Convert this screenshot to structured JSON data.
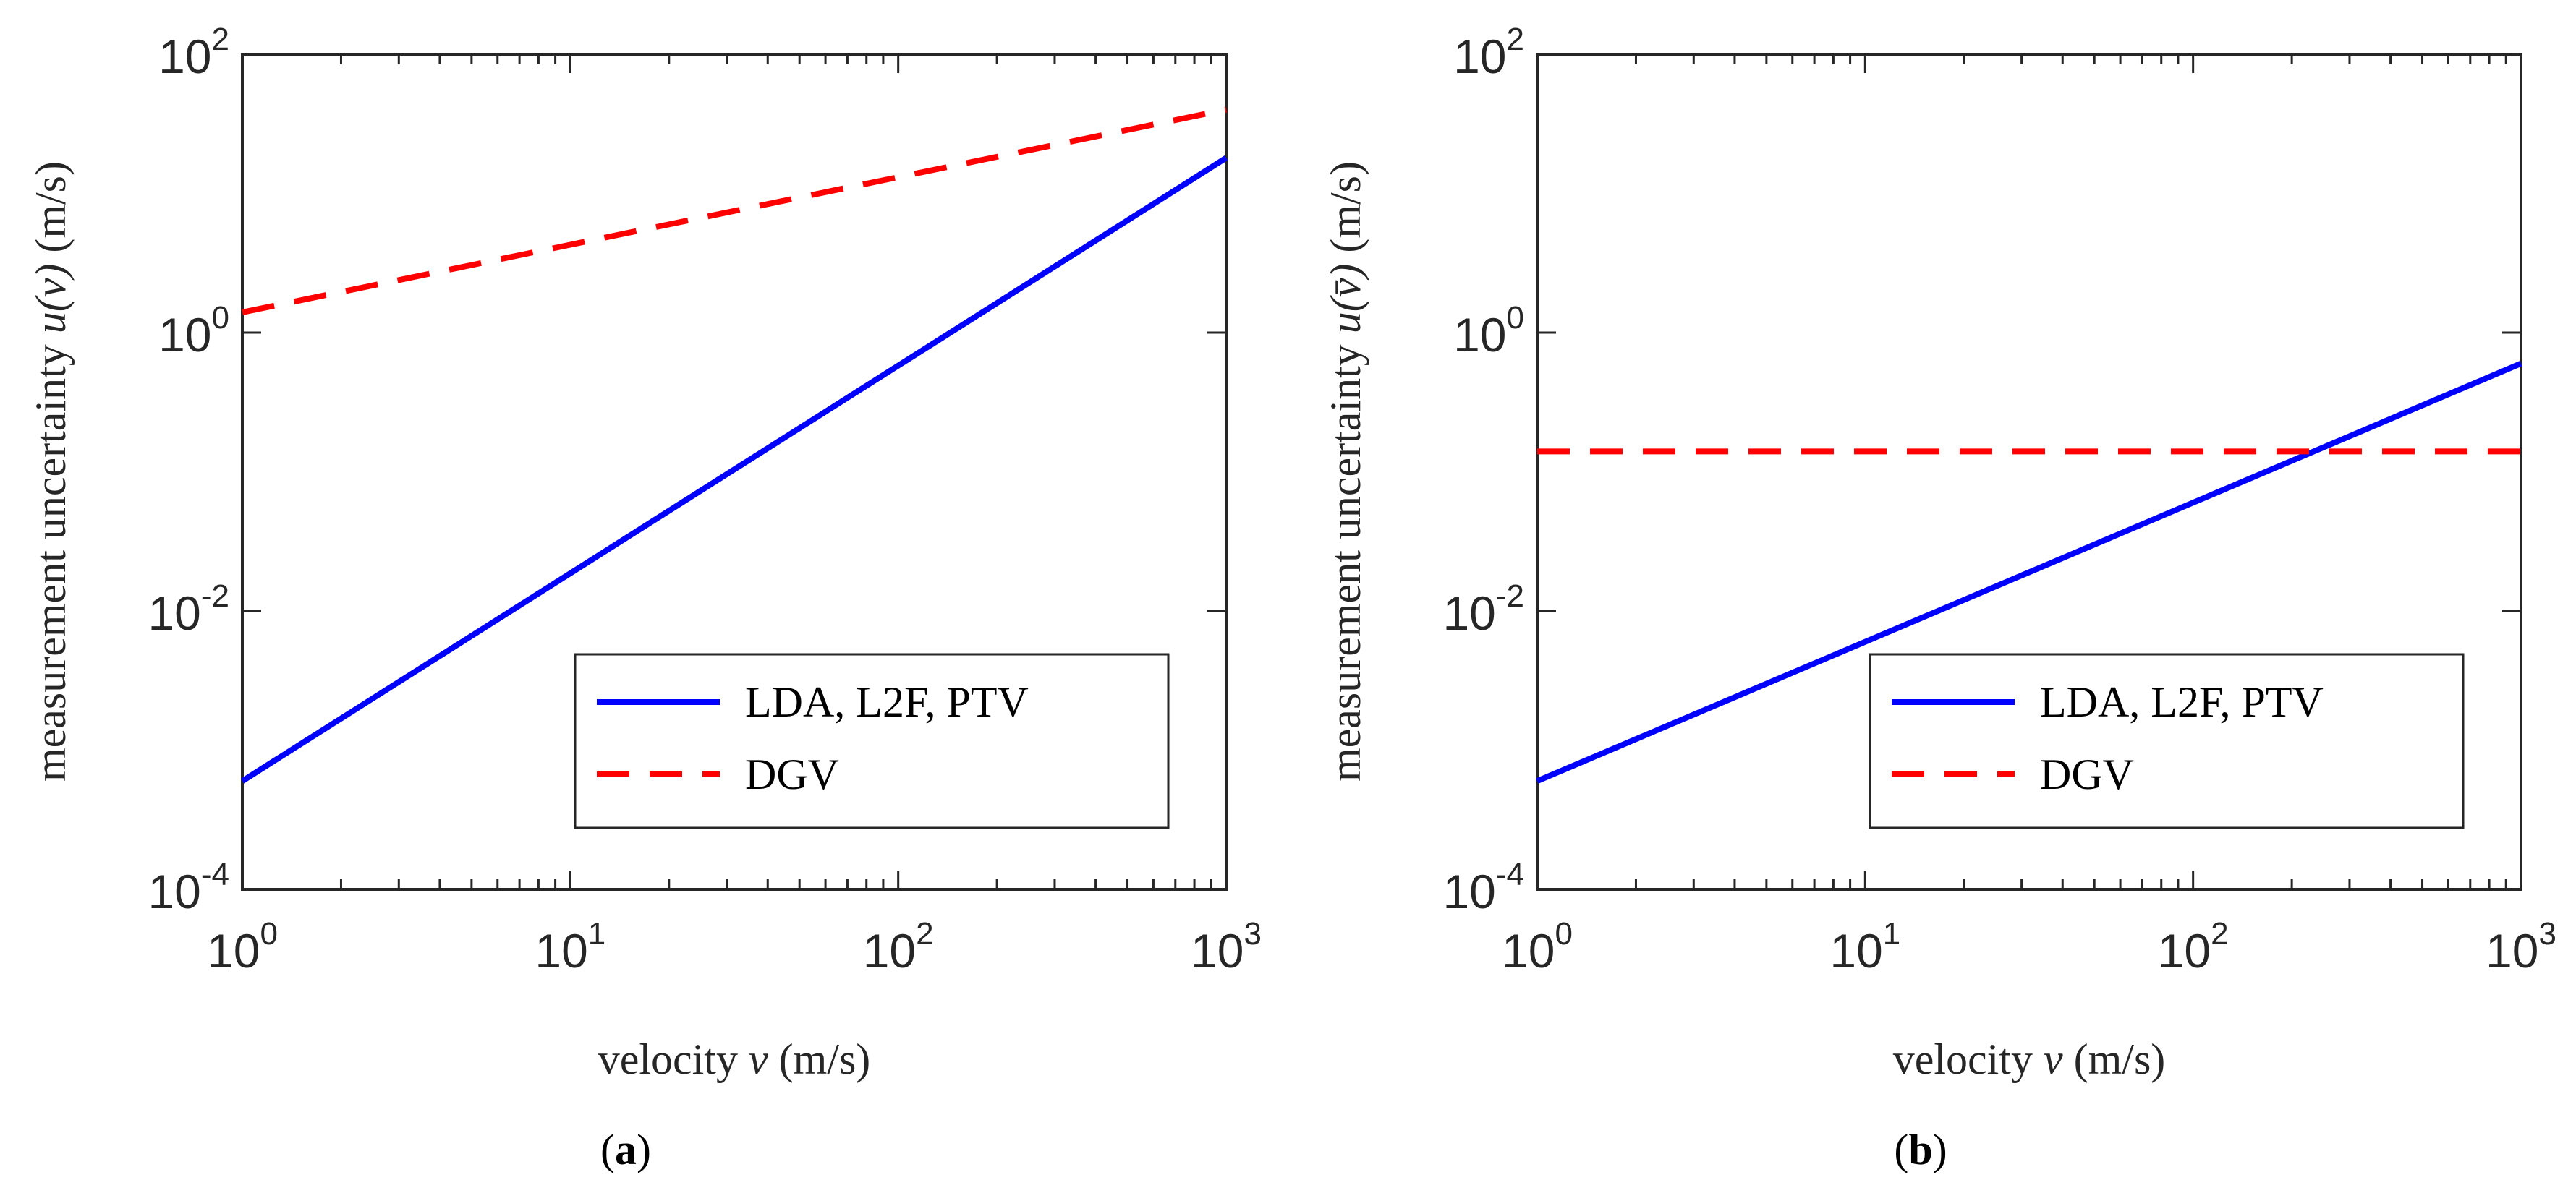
{
  "chart_data": [
    {
      "type": "line",
      "panel_label": "a",
      "x_scale": "log",
      "y_scale": "log",
      "xlim": [
        1,
        1000
      ],
      "ylim": [
        0.0001,
        100
      ],
      "x_ticks": [
        {
          "base": "10",
          "exp": "0",
          "value": 1
        },
        {
          "base": "10",
          "exp": "1",
          "value": 10
        },
        {
          "base": "10",
          "exp": "2",
          "value": 100
        },
        {
          "base": "10",
          "exp": "3",
          "value": 1000
        }
      ],
      "y_ticks": [
        {
          "base": "10",
          "exp": "-4",
          "value": 0.0001
        },
        {
          "base": "10",
          "exp": "-2",
          "value": 0.01
        },
        {
          "base": "10",
          "exp": "0",
          "value": 1
        },
        {
          "base": "10",
          "exp": "2",
          "value": 100
        }
      ],
      "xlabel": {
        "pre": "velocity ",
        "var": "v",
        "post": " (m/s)"
      },
      "ylabel": {
        "pre": "measurement uncertainty ",
        "var": "u(v)",
        "post": " (m/s)"
      },
      "legend_position": "bottom-right",
      "series": [
        {
          "name": "LDA, L2F, PTV",
          "color": "#0000ff",
          "style": "solid",
          "x": [
            1,
            1000
          ],
          "y": [
            0.0006,
            18
          ]
        },
        {
          "name": "DGV",
          "color": "#ff0000",
          "style": "dashed",
          "x": [
            1,
            1000
          ],
          "y": [
            1.4,
            40
          ]
        }
      ]
    },
    {
      "type": "line",
      "panel_label": "b",
      "x_scale": "log",
      "y_scale": "log",
      "xlim": [
        1,
        1000
      ],
      "ylim": [
        0.0001,
        100
      ],
      "x_ticks": [
        {
          "base": "10",
          "exp": "0",
          "value": 1
        },
        {
          "base": "10",
          "exp": "1",
          "value": 10
        },
        {
          "base": "10",
          "exp": "2",
          "value": 100
        },
        {
          "base": "10",
          "exp": "3",
          "value": 1000
        }
      ],
      "y_ticks": [
        {
          "base": "10",
          "exp": "-4",
          "value": 0.0001
        },
        {
          "base": "10",
          "exp": "-2",
          "value": 0.01
        },
        {
          "base": "10",
          "exp": "0",
          "value": 1
        },
        {
          "base": "10",
          "exp": "2",
          "value": 100
        }
      ],
      "xlabel": {
        "pre": "velocity ",
        "var": "v",
        "post": " (m/s)"
      },
      "ylabel": {
        "pre": "measurement uncertainty ",
        "var": "u(v̄)",
        "post": " (m/s)"
      },
      "legend_position": "bottom-right",
      "series": [
        {
          "name": "LDA, L2F, PTV",
          "color": "#0000ff",
          "style": "solid",
          "x": [
            1,
            1000
          ],
          "y": [
            0.0006,
            0.6
          ]
        },
        {
          "name": "DGV",
          "color": "#ff0000",
          "style": "dashed",
          "x": [
            1,
            1000
          ],
          "y": [
            0.14,
            0.14
          ]
        }
      ]
    }
  ]
}
